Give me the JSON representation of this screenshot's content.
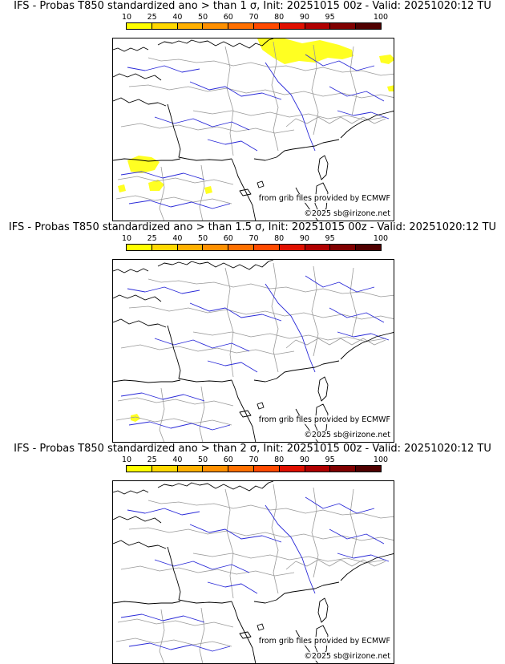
{
  "panels": [
    {
      "title": "IFS - Probas T850  standardized ano > than 1 σ, Init: 20251015 00z - Valid: 20251020:12 TU",
      "anomaly_sigma": 1,
      "probability_areas": [
        {
          "region": "Belgium / Germany / Netherlands",
          "probability_pct": "10-25"
        },
        {
          "region": "northern Spain",
          "probability_pct": "10-25"
        }
      ]
    },
    {
      "title": "IFS - Probas T850  standardized ano > than 1.5 σ, Init: 20251015 00z - Valid: 20251020:12 TU",
      "anomaly_sigma": 1.5,
      "probability_areas": [
        {
          "region": "northern Spain",
          "probability_pct": "10-25"
        }
      ]
    },
    {
      "title": "IFS - Probas T850  standardized ano > than 2 σ, Init: 20251015 00z - Valid: 20251020:12 TU",
      "anomaly_sigma": 2,
      "probability_areas": []
    }
  ],
  "colorbar": {
    "labels": [
      "10",
      "25",
      "40",
      "50",
      "60",
      "70",
      "80",
      "90",
      "95",
      "100"
    ],
    "colors": [
      "#ffff00",
      "#ffd800",
      "#ffb000",
      "#ff9000",
      "#ff7000",
      "#ff4a00",
      "#e01000",
      "#b00000",
      "#800000",
      "#500000"
    ]
  },
  "credits": {
    "source": "from grib files provided by ECMWF",
    "copyright": "©2025 sb@irizone.net"
  },
  "map_colors": {
    "coast": "#000000",
    "borders": "#9a9a9a",
    "rivers": "#2a2ad8",
    "anomaly_fill": "#ffff22"
  }
}
